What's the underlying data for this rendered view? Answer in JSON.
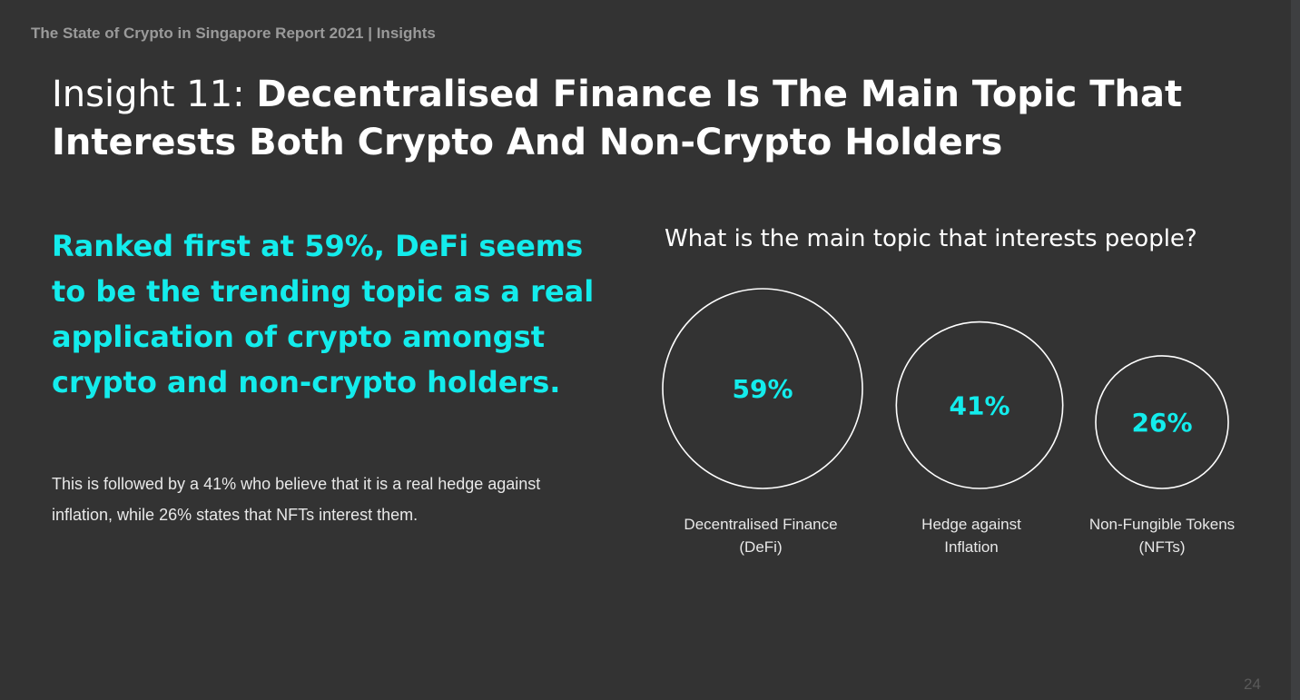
{
  "header": "The State of Crypto in Singapore Report 2021 | Insights",
  "title": {
    "prefix": "Insight 11: ",
    "main": "Decentralised Finance Is The Main Topic That Interests Both Crypto And Non-Crypto Holders"
  },
  "headline": "Ranked first at 59%, DeFi seems to be the trending topic as a real application of crypto amongst crypto and non-crypto holders.",
  "body": "This is followed by a 41% who believe that it is a real hedge against inflation, while 26% states that NFTs interest them.",
  "page_number": "24",
  "colors": {
    "background": "#333333",
    "accent": "#13ecec",
    "circle_stroke": "#ffffff"
  },
  "chart_data": {
    "type": "bubble",
    "title": "What is the main topic that interests people?",
    "categories": [
      [
        "Decentralised Finance",
        "(DeFi)"
      ],
      [
        "Hedge against",
        "Inflation"
      ],
      [
        "Non-Fungible Tokens",
        "(NFTs)"
      ]
    ],
    "values": [
      59,
      41,
      26
    ],
    "value_labels": [
      "59%",
      "41%",
      "26%"
    ],
    "unit": "%"
  }
}
